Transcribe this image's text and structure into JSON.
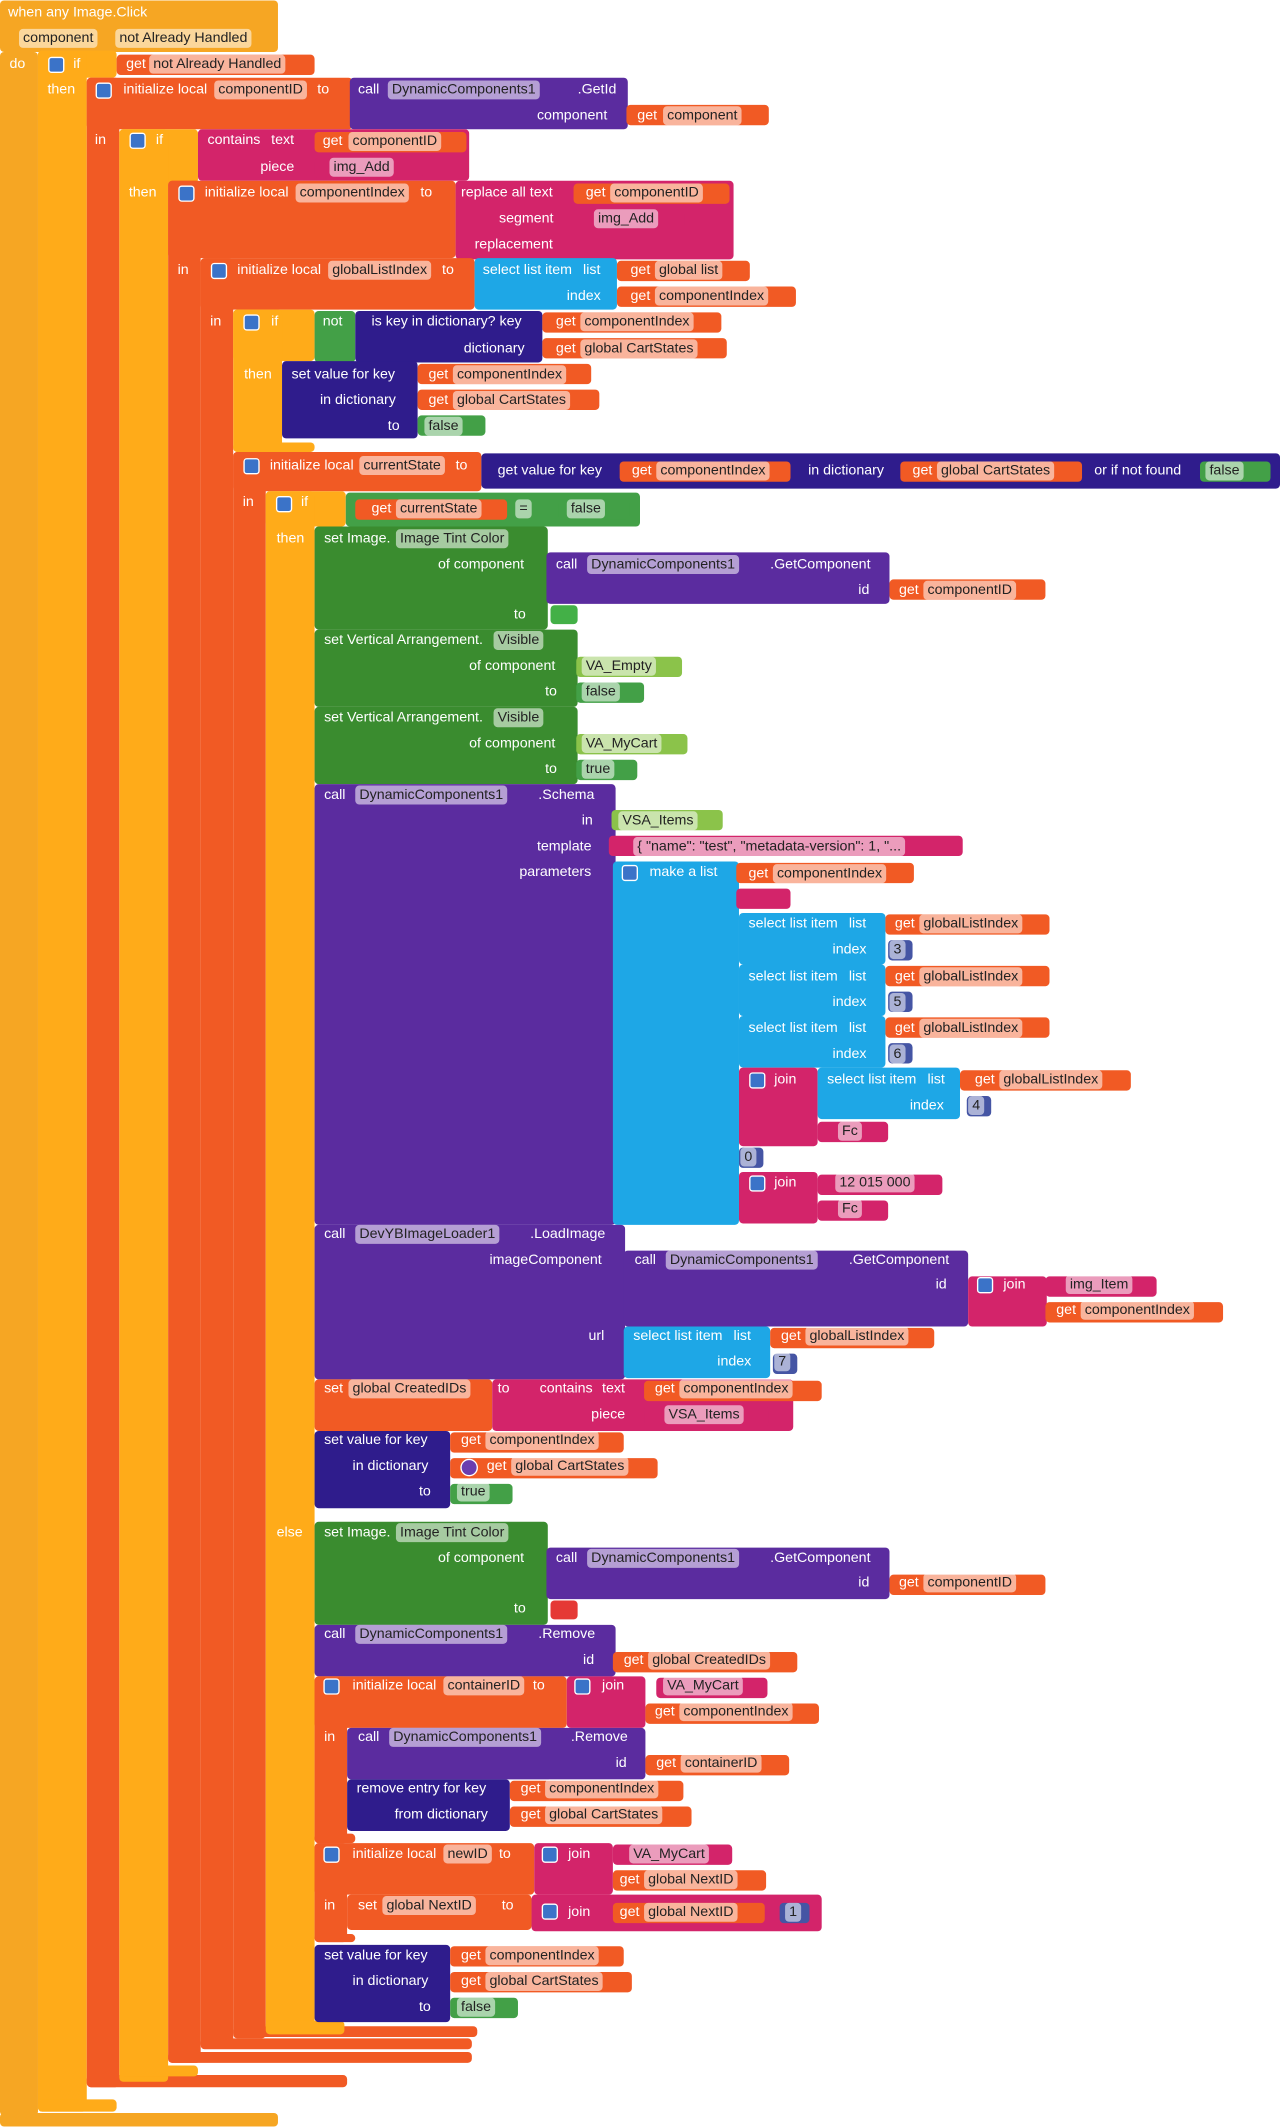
{
  "labels": [
    "when any Image.Click",
    "component",
    "not Already Handled",
    "do",
    "if",
    "get",
    "not Already Handled",
    "then",
    "initialize local",
    "componentID",
    "to",
    "call",
    "DynamicComponents1",
    ".GetId",
    "component",
    "get",
    "component",
    "in",
    "if",
    "contains",
    "text",
    "get",
    "componentID",
    "piece",
    "img_Add",
    "then",
    "initialize local",
    "componentIndex",
    "to",
    "replace all text",
    "get",
    "componentID",
    "segment",
    "img_Add",
    "replacement",
    "in",
    "initialize local",
    "globalListIndex",
    "to",
    "select list item",
    "list",
    "get",
    "global list",
    "index",
    "get",
    "componentIndex",
    "in",
    "if",
    "not",
    "is key in dictionary? key",
    "get",
    "componentIndex",
    "dictionary",
    "get",
    "global CartStates",
    "then",
    "set value for key",
    "get",
    "componentIndex",
    "in dictionary",
    "get",
    "global CartStates",
    "to",
    "false",
    "initialize local",
    "currentState",
    "to",
    "get value for key",
    "get",
    "componentIndex",
    "in dictionary",
    "get",
    "global CartStates",
    "or if not found",
    "false",
    "in",
    "if",
    "get",
    "currentState",
    "=",
    "false",
    "then",
    "set Image.",
    "Image Tint Color",
    "of component",
    "call",
    "DynamicComponents1",
    ".GetComponent",
    "id",
    "get",
    "componentID",
    "to",
    "set Vertical Arrangement.",
    "Visible",
    "of component",
    "VA_Empty",
    "to",
    "false",
    "set Vertical Arrangement.",
    "Visible",
    "of component",
    "VA_MyCart",
    "to",
    "true",
    "call",
    "DynamicComponents1",
    ".Schema",
    "in",
    "VSA_Items",
    "template",
    "{  \"name\": \"test\",   \"metadata-version\": 1,   \"...",
    "parameters",
    "make a list",
    "get",
    "componentIndex",
    "select list item",
    "list",
    "get",
    "globalListIndex",
    "index",
    3,
    "select list item",
    "list",
    "get",
    "globalListIndex",
    "index",
    5,
    "select list item",
    "list",
    "get",
    "globalListIndex",
    "index",
    6,
    "join",
    "select list item",
    "list",
    "get",
    "globalListIndex",
    "index",
    4,
    "Fc",
    0,
    "join",
    "12 015 000",
    "Fc",
    "call",
    "DevYBImageLoader1",
    ".LoadImage",
    "imageComponent",
    "call",
    "DynamicComponents1",
    ".GetComponent",
    "id",
    "join",
    "img_Item",
    "get",
    "componentIndex",
    "url",
    "select list item",
    "list",
    "get",
    "globalListIndex",
    "index",
    7,
    "set",
    "global CreatedIDs",
    "to",
    "contains",
    "text",
    "get",
    "componentIndex",
    "piece",
    "VSA_Items",
    "set value for key",
    "get",
    "componentIndex",
    "in dictionary",
    "get",
    "global CartStates",
    "to",
    "true",
    "else",
    "set Image.",
    "Image Tint Color",
    "of component",
    "call",
    "DynamicComponents1",
    ".GetComponent",
    "id",
    "get",
    "componentID",
    "to",
    "call",
    "DynamicComponents1",
    ".Remove",
    "id",
    "get",
    "global CreatedIDs",
    "initialize local",
    "containerID",
    "to",
    "join",
    "VA_MyCart",
    "get",
    "componentIndex",
    "in",
    "call",
    "DynamicComponents1",
    ".Remove",
    "id",
    "get",
    "containerID",
    "remove entry for key",
    "get",
    "componentIndex",
    "from dictionary",
    "get",
    "global CartStates",
    "initialize local",
    "newID",
    "to",
    "join",
    "VA_MyCart",
    "get",
    "global NextID",
    "in",
    "set",
    "global NextID",
    "to",
    "join",
    "get",
    "global NextID",
    1,
    "set value for key",
    "get",
    "componentIndex",
    "in dictionary",
    "get",
    "global CartStates",
    "to",
    "false"
  ]
}
